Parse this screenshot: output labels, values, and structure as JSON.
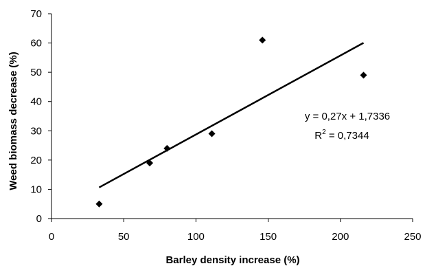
{
  "chart_data": {
    "type": "scatter",
    "title": "",
    "xlabel": "Barley density increase (%)",
    "ylabel": "Weed biomass decrease (%)",
    "xlim": [
      0,
      250
    ],
    "ylim": [
      0,
      70
    ],
    "xticks": [
      0,
      50,
      100,
      150,
      200,
      250
    ],
    "yticks": [
      0,
      10,
      20,
      30,
      40,
      50,
      60,
      70
    ],
    "grid": false,
    "legend": "none",
    "marker": "diamond",
    "color": "#000000",
    "points": [
      {
        "x": 33,
        "y": 5
      },
      {
        "x": 68,
        "y": 19
      },
      {
        "x": 80,
        "y": 24
      },
      {
        "x": 111,
        "y": 29
      },
      {
        "x": 146,
        "y": 61
      },
      {
        "x": 216,
        "y": 49
      }
    ],
    "trendline": {
      "type": "linear",
      "slope": 0.27,
      "intercept": 1.7336,
      "x_range": [
        33,
        216
      ],
      "equation_text": "y = 0,27x + 1,7336",
      "r2_prefix": "R",
      "r2_exponent": "2",
      "r2_value_text": " = 0,7344"
    }
  }
}
